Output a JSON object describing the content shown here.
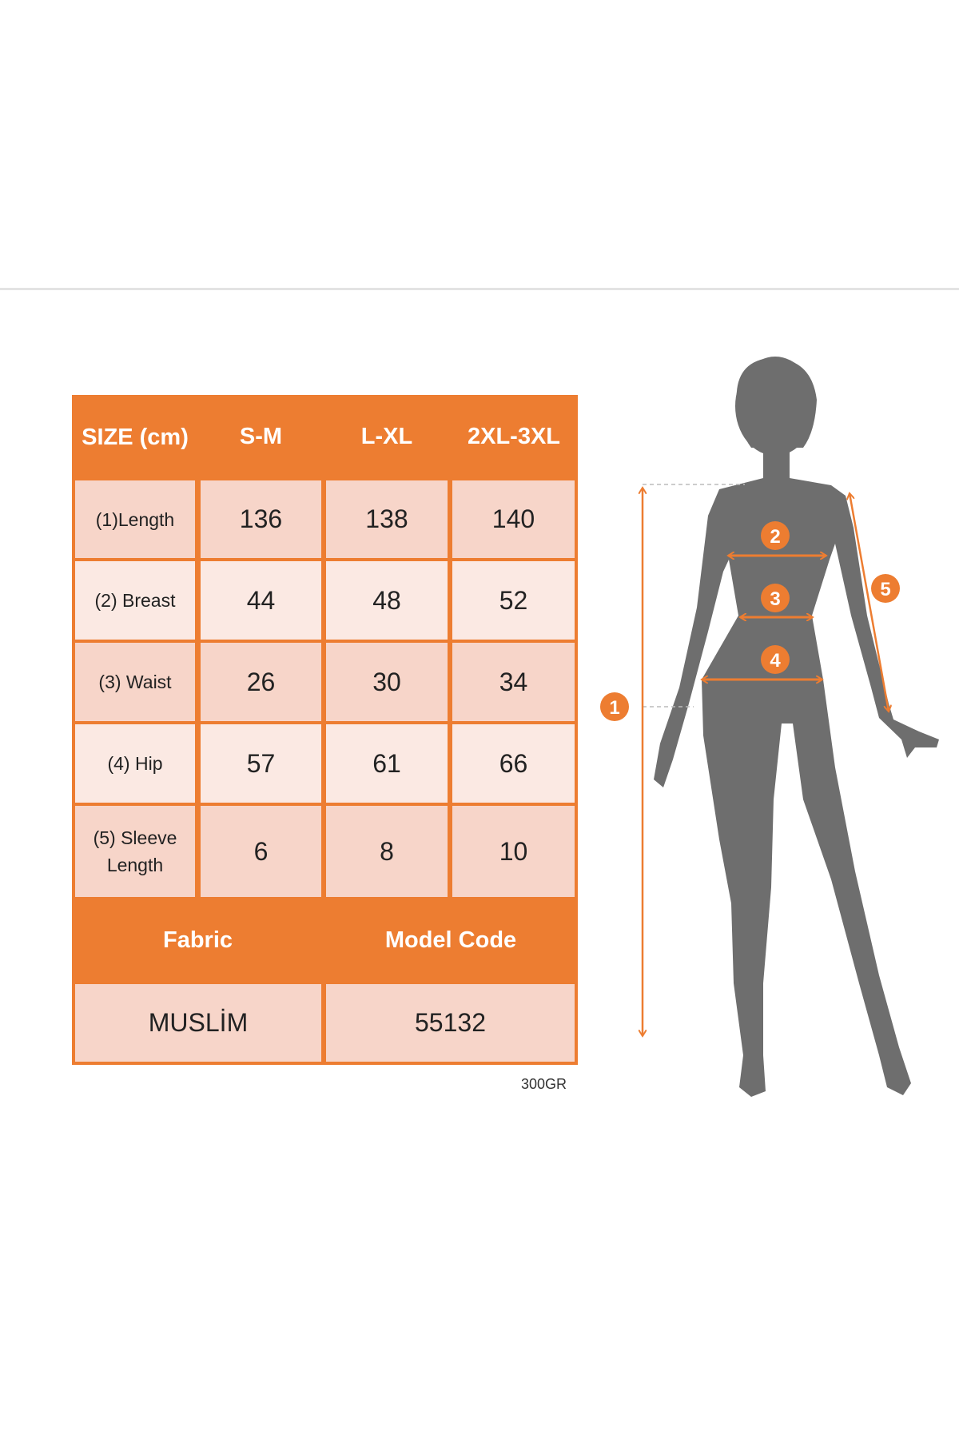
{
  "table": {
    "header": {
      "size_label": "SIZE (cm)",
      "sizes": [
        "S-M",
        "L-XL",
        "2XL-3XL"
      ]
    },
    "rows": [
      {
        "label": "(1)Length",
        "values": [
          "136",
          "138",
          "140"
        ]
      },
      {
        "label": "(2) Breast",
        "values": [
          "44",
          "48",
          "52"
        ]
      },
      {
        "label": "(3) Waist",
        "values": [
          "26",
          "30",
          "34"
        ]
      },
      {
        "label": "(4) Hip",
        "values": [
          "57",
          "61",
          "66"
        ]
      },
      {
        "label": "(5) Sleeve Length",
        "values": [
          "6",
          "8",
          "10"
        ]
      }
    ],
    "footer": {
      "fabric_label": "Fabric",
      "model_code_label": "Model Code",
      "fabric": "MUSLİM",
      "model_code": "55132"
    }
  },
  "weight_note": "300GR",
  "figure": {
    "markers": [
      "1",
      "2",
      "3",
      "4",
      "5"
    ],
    "accent_color": "#ED7D31",
    "silhouette_color": "#6E6E6E"
  }
}
